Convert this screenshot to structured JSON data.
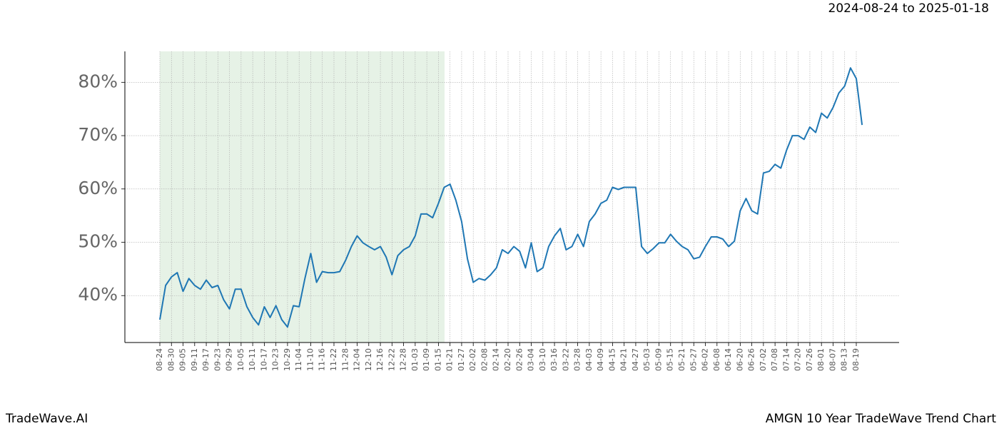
{
  "chart_data": {
    "type": "line",
    "title": "2024-08-24 to 2025-01-18",
    "footer_left": "TradeWave.AI",
    "footer_right": "AMGN 10 Year TradeWave Trend Chart",
    "categories": [
      "08-24",
      null,
      "08-30",
      null,
      "09-05",
      null,
      "09-11",
      null,
      "09-17",
      null,
      "09-23",
      null,
      "09-29",
      null,
      "10-05",
      null,
      "10-11",
      null,
      "10-17",
      null,
      "10-23",
      null,
      "10-29",
      null,
      "11-04",
      null,
      "11-10",
      null,
      "11-16",
      null,
      "11-22",
      null,
      "11-28",
      null,
      "12-04",
      null,
      "12-10",
      null,
      "12-16",
      null,
      "12-22",
      null,
      "12-28",
      null,
      "01-03",
      null,
      "01-09",
      null,
      "01-15",
      null,
      "01-21",
      null,
      "01-27",
      null,
      "02-02",
      null,
      "02-08",
      null,
      "02-14",
      null,
      "02-20",
      null,
      "02-26",
      null,
      "03-04",
      null,
      "03-10",
      null,
      "03-16",
      null,
      "03-22",
      null,
      "03-28",
      null,
      "04-03",
      null,
      "04-09",
      null,
      "04-15",
      null,
      "04-21",
      null,
      "04-27",
      null,
      "05-03",
      null,
      "05-09",
      null,
      "05-15",
      null,
      "05-21",
      null,
      "05-27",
      null,
      "06-02",
      null,
      "06-08",
      null,
      "06-14",
      null,
      "06-20",
      null,
      "06-26",
      null,
      "07-02",
      null,
      "07-08",
      null,
      "07-14",
      null,
      "07-20",
      null,
      "07-26",
      null,
      "08-01",
      null,
      "08-07",
      null,
      "08-13",
      null,
      "08-19",
      null
    ],
    "values": [
      35.5,
      41.9,
      43.5,
      44.3,
      40.8,
      43.2,
      41.9,
      41.2,
      42.9,
      41.5,
      41.9,
      39.2,
      37.5,
      41.2,
      41.2,
      37.9,
      35.9,
      34.5,
      37.9,
      35.9,
      38.1,
      35.5,
      34.1,
      38.1,
      37.9,
      43.2,
      47.9,
      42.5,
      44.5,
      44.3,
      44.3,
      44.5,
      46.6,
      49.2,
      51.2,
      49.9,
      49.2,
      48.6,
      49.2,
      47.2,
      43.9,
      47.5,
      48.6,
      49.2,
      51.2,
      55.3,
      55.3,
      54.6,
      57.3,
      60.3,
      60.9,
      57.9,
      53.9,
      46.9,
      42.5,
      43.2,
      42.9,
      43.9,
      45.2,
      48.6,
      47.9,
      49.2,
      48.3,
      45.2,
      49.9,
      44.5,
      45.2,
      49.2,
      51.2,
      52.6,
      48.6,
      49.2,
      51.5,
      49.2,
      53.9,
      55.3,
      57.3,
      57.9,
      60.3,
      59.9,
      60.3,
      60.3,
      60.3,
      49.2,
      47.9,
      48.8,
      49.9,
      49.9,
      51.5,
      50.2,
      49.2,
      48.6,
      46.9,
      47.2,
      49.2,
      51.0,
      51.0,
      50.6,
      49.2,
      50.2,
      55.9,
      58.2,
      55.9,
      55.3,
      63.0,
      63.3,
      64.6,
      63.9,
      67.3,
      70.0,
      70.0,
      69.3,
      71.6,
      70.6,
      74.2,
      73.3,
      75.3,
      78.0,
      79.3,
      82.7,
      80.7,
      72.0
    ],
    "color": "#1f77b4",
    "ylim": [
      31.2,
      85.8
    ],
    "yticks": [
      {
        "value": 40,
        "label": "40%"
      },
      {
        "value": 50,
        "label": "50%"
      },
      {
        "value": 60,
        "label": "60%"
      },
      {
        "value": 70,
        "label": "70%"
      },
      {
        "value": 80,
        "label": "80%"
      }
    ],
    "grid": true
  }
}
